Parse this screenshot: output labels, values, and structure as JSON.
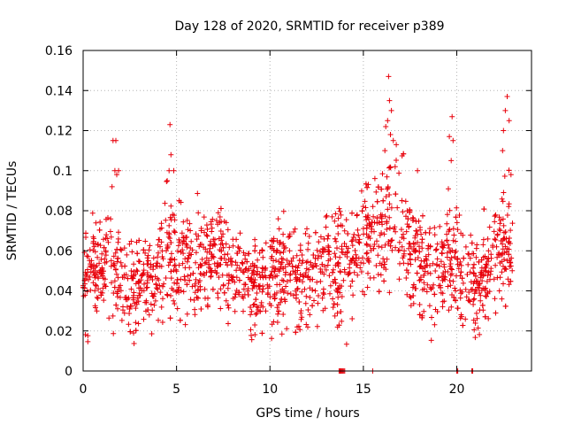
{
  "chart_data": {
    "type": "scatter",
    "title": "Day 128 of 2020, SRMTID for receiver p389",
    "xlabel": "GPS time / hours",
    "ylabel": "SRMTID / TECUs",
    "xlim": [
      0,
      24
    ],
    "ylim": [
      0,
      0.16
    ],
    "x_ticks": [
      0,
      5,
      10,
      15,
      20
    ],
    "x_tick_labels": [
      "0",
      "5",
      "10",
      "15",
      "20"
    ],
    "y_ticks": [
      0,
      0.02,
      0.04,
      0.06,
      0.08,
      0.1,
      0.12,
      0.14,
      0.16
    ],
    "y_tick_labels": [
      "0",
      "0.02",
      "0.04",
      "0.06",
      "0.08",
      "0.1",
      "0.12",
      "0.14",
      "0.16"
    ],
    "grid": true,
    "marker": "plus",
    "colors": {
      "series": "#e8000b",
      "grid": "#b4b4b4",
      "axis": "#000000"
    },
    "hours_end": 23.0,
    "band": [
      [
        0.0,
        0.043,
        0.018
      ],
      [
        0.5,
        0.052,
        0.016
      ],
      [
        1.0,
        0.055,
        0.017
      ],
      [
        1.5,
        0.058,
        0.02
      ],
      [
        2.0,
        0.048,
        0.016
      ],
      [
        2.5,
        0.042,
        0.015
      ],
      [
        3.0,
        0.047,
        0.015
      ],
      [
        3.5,
        0.046,
        0.015
      ],
      [
        4.0,
        0.05,
        0.016
      ],
      [
        4.5,
        0.058,
        0.02
      ],
      [
        5.0,
        0.057,
        0.018
      ],
      [
        5.5,
        0.055,
        0.016
      ],
      [
        6.0,
        0.054,
        0.016
      ],
      [
        6.5,
        0.056,
        0.016
      ],
      [
        7.0,
        0.057,
        0.017
      ],
      [
        7.5,
        0.054,
        0.016
      ],
      [
        8.0,
        0.05,
        0.016
      ],
      [
        8.5,
        0.045,
        0.016
      ],
      [
        9.0,
        0.04,
        0.015
      ],
      [
        9.5,
        0.043,
        0.015
      ],
      [
        10.0,
        0.048,
        0.016
      ],
      [
        10.5,
        0.052,
        0.017
      ],
      [
        11.0,
        0.05,
        0.017
      ],
      [
        11.5,
        0.045,
        0.016
      ],
      [
        12.0,
        0.047,
        0.016
      ],
      [
        12.5,
        0.049,
        0.016
      ],
      [
        13.0,
        0.052,
        0.017
      ],
      [
        13.5,
        0.048,
        0.017
      ],
      [
        14.0,
        0.055,
        0.018
      ],
      [
        14.5,
        0.06,
        0.017
      ],
      [
        15.0,
        0.066,
        0.015
      ],
      [
        15.5,
        0.068,
        0.017
      ],
      [
        16.0,
        0.07,
        0.02
      ],
      [
        16.5,
        0.078,
        0.024
      ],
      [
        17.0,
        0.072,
        0.021
      ],
      [
        17.5,
        0.064,
        0.018
      ],
      [
        18.0,
        0.056,
        0.017
      ],
      [
        18.5,
        0.046,
        0.016
      ],
      [
        19.0,
        0.05,
        0.017
      ],
      [
        19.5,
        0.06,
        0.02
      ],
      [
        20.0,
        0.055,
        0.02
      ],
      [
        20.5,
        0.045,
        0.016
      ],
      [
        21.0,
        0.042,
        0.016
      ],
      [
        21.5,
        0.05,
        0.016
      ],
      [
        22.0,
        0.054,
        0.018
      ],
      [
        22.5,
        0.068,
        0.022
      ],
      [
        23.0,
        0.062,
        0.018
      ]
    ],
    "spikes": [
      [
        1.6,
        0.115
      ],
      [
        1.75,
        0.115
      ],
      [
        1.7,
        0.1
      ],
      [
        1.9,
        0.1
      ],
      [
        1.8,
        0.098
      ],
      [
        1.55,
        0.092
      ],
      [
        4.6,
        0.1
      ],
      [
        4.7,
        0.108
      ],
      [
        4.65,
        0.123
      ],
      [
        4.85,
        0.1
      ],
      [
        4.5,
        0.095
      ],
      [
        16.2,
        0.122
      ],
      [
        16.3,
        0.125
      ],
      [
        16.4,
        0.135
      ],
      [
        16.35,
        0.147
      ],
      [
        16.5,
        0.13
      ],
      [
        16.45,
        0.118
      ],
      [
        16.6,
        0.115
      ],
      [
        16.15,
        0.11
      ],
      [
        16.7,
        0.102
      ],
      [
        17.9,
        0.1
      ],
      [
        19.6,
        0.117
      ],
      [
        19.75,
        0.127
      ],
      [
        19.8,
        0.115
      ],
      [
        19.7,
        0.105
      ],
      [
        22.5,
        0.12
      ],
      [
        22.6,
        0.13
      ],
      [
        22.7,
        0.137
      ],
      [
        22.8,
        0.125
      ],
      [
        22.45,
        0.11
      ],
      [
        22.9,
        0.098
      ]
    ],
    "zero_points": [
      13.7,
      13.75,
      13.8,
      13.85,
      13.9,
      13.95,
      14.0,
      15.5,
      20.0,
      20.05,
      20.8,
      20.85
    ]
  }
}
